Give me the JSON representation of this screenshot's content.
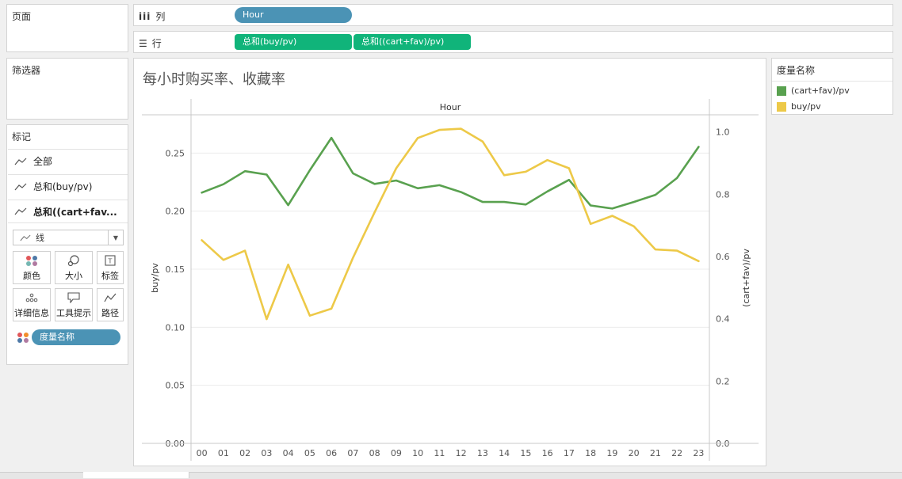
{
  "pages_panel": {
    "title": "页面"
  },
  "filters_panel": {
    "title": "筛选器"
  },
  "marks_panel": {
    "title": "标记",
    "rows": [
      {
        "label": "全部",
        "bold": false
      },
      {
        "label": "总和(buy/pv)",
        "bold": false
      },
      {
        "label": "总和((cart+fav...",
        "bold": true
      }
    ],
    "mark_type": "线",
    "buttons": [
      {
        "label": "颜色",
        "icon": "color-dots-icon"
      },
      {
        "label": "大小",
        "icon": "size-icon"
      },
      {
        "label": "标签",
        "icon": "label-icon"
      },
      {
        "label": "详细信息",
        "icon": "detail-icon"
      },
      {
        "label": "工具提示",
        "icon": "tooltip-icon"
      },
      {
        "label": "路径",
        "icon": "path-icon"
      }
    ],
    "color_pill": "度量名称"
  },
  "columns_shelf": {
    "label": "列",
    "pills": [
      "Hour"
    ]
  },
  "rows_shelf": {
    "label": "行",
    "pills": [
      "总和(buy/pv)",
      "总和((cart+fav)/pv)"
    ]
  },
  "legend": {
    "title": "度量名称",
    "items": [
      {
        "label": "(cart+fav)/pv",
        "color": "#59a14f"
      },
      {
        "label": "buy/pv",
        "color": "#edc948"
      }
    ]
  },
  "chart_data": {
    "type": "line",
    "title": "每小时购买率、收藏率",
    "xlabel": "Hour",
    "categories": [
      "00",
      "01",
      "02",
      "03",
      "04",
      "05",
      "06",
      "07",
      "08",
      "09",
      "10",
      "11",
      "12",
      "13",
      "14",
      "15",
      "16",
      "17",
      "18",
      "19",
      "20",
      "21",
      "22",
      "23"
    ],
    "y_left": {
      "label": "buy/pv",
      "ticks": [
        "0.00",
        "0.05",
        "0.10",
        "0.15",
        "0.20",
        "0.25"
      ],
      "range": [
        0,
        0.283
      ]
    },
    "y_right": {
      "label": "(cart+fav)/pv",
      "ticks": [
        "0.0",
        "0.2",
        "0.4",
        "0.6",
        "0.8",
        "1.0"
      ],
      "range": [
        0,
        1.055
      ]
    },
    "series": [
      {
        "name": "(cart+fav)/pv",
        "axis": "right",
        "color": "#59a14f",
        "values": [
          0.805,
          0.832,
          0.874,
          0.863,
          0.765,
          0.877,
          0.981,
          0.867,
          0.833,
          0.844,
          0.819,
          0.829,
          0.807,
          0.775,
          0.775,
          0.767,
          0.809,
          0.846,
          0.764,
          0.754,
          0.775,
          0.798,
          0.852,
          0.952
        ]
      },
      {
        "name": "buy/pv",
        "axis": "left",
        "color": "#edc948",
        "values": [
          0.175,
          0.158,
          0.166,
          0.107,
          0.154,
          0.11,
          0.116,
          0.16,
          0.199,
          0.237,
          0.263,
          0.27,
          0.271,
          0.26,
          0.231,
          0.234,
          0.244,
          0.237,
          0.189,
          0.196,
          0.187,
          0.167,
          0.166,
          0.157
        ]
      }
    ],
    "grid": true
  }
}
